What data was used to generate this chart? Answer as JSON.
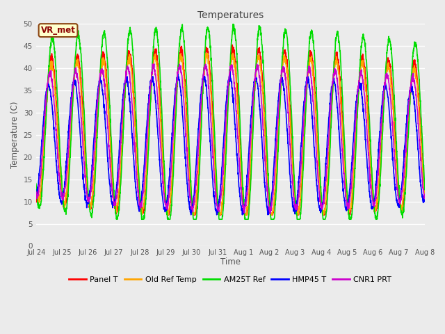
{
  "title": "Temperatures",
  "xlabel": "Time",
  "ylabel": "Temperature (C)",
  "ylim": [
    0,
    50
  ],
  "yticks": [
    0,
    5,
    10,
    15,
    20,
    25,
    30,
    35,
    40,
    45,
    50
  ],
  "x_labels": [
    "Jul 24",
    "Jul 25",
    "Jul 26",
    "Jul 27",
    "Jul 28",
    "Jul 29",
    "Jul 30",
    "Jul 31",
    "Aug 1",
    "Aug 2",
    "Aug 3",
    "Aug 4",
    "Aug 5",
    "Aug 6",
    "Aug 7",
    "Aug 8"
  ],
  "annotation_text": "VR_met",
  "bg_color": "#ebebeb",
  "plot_bg_color": "#ebebeb",
  "series": [
    {
      "label": "Panel T",
      "color": "#ff0000",
      "lw": 1.2
    },
    {
      "label": "Old Ref Temp",
      "color": "#ffa500",
      "lw": 1.2
    },
    {
      "label": "AM25T Ref",
      "color": "#00dd00",
      "lw": 1.2
    },
    {
      "label": "HMP45 T",
      "color": "#0000ff",
      "lw": 1.2
    },
    {
      "label": "CNR1 PRT",
      "color": "#cc00cc",
      "lw": 1.2
    }
  ],
  "n_days": 15,
  "pts_per_day": 144
}
